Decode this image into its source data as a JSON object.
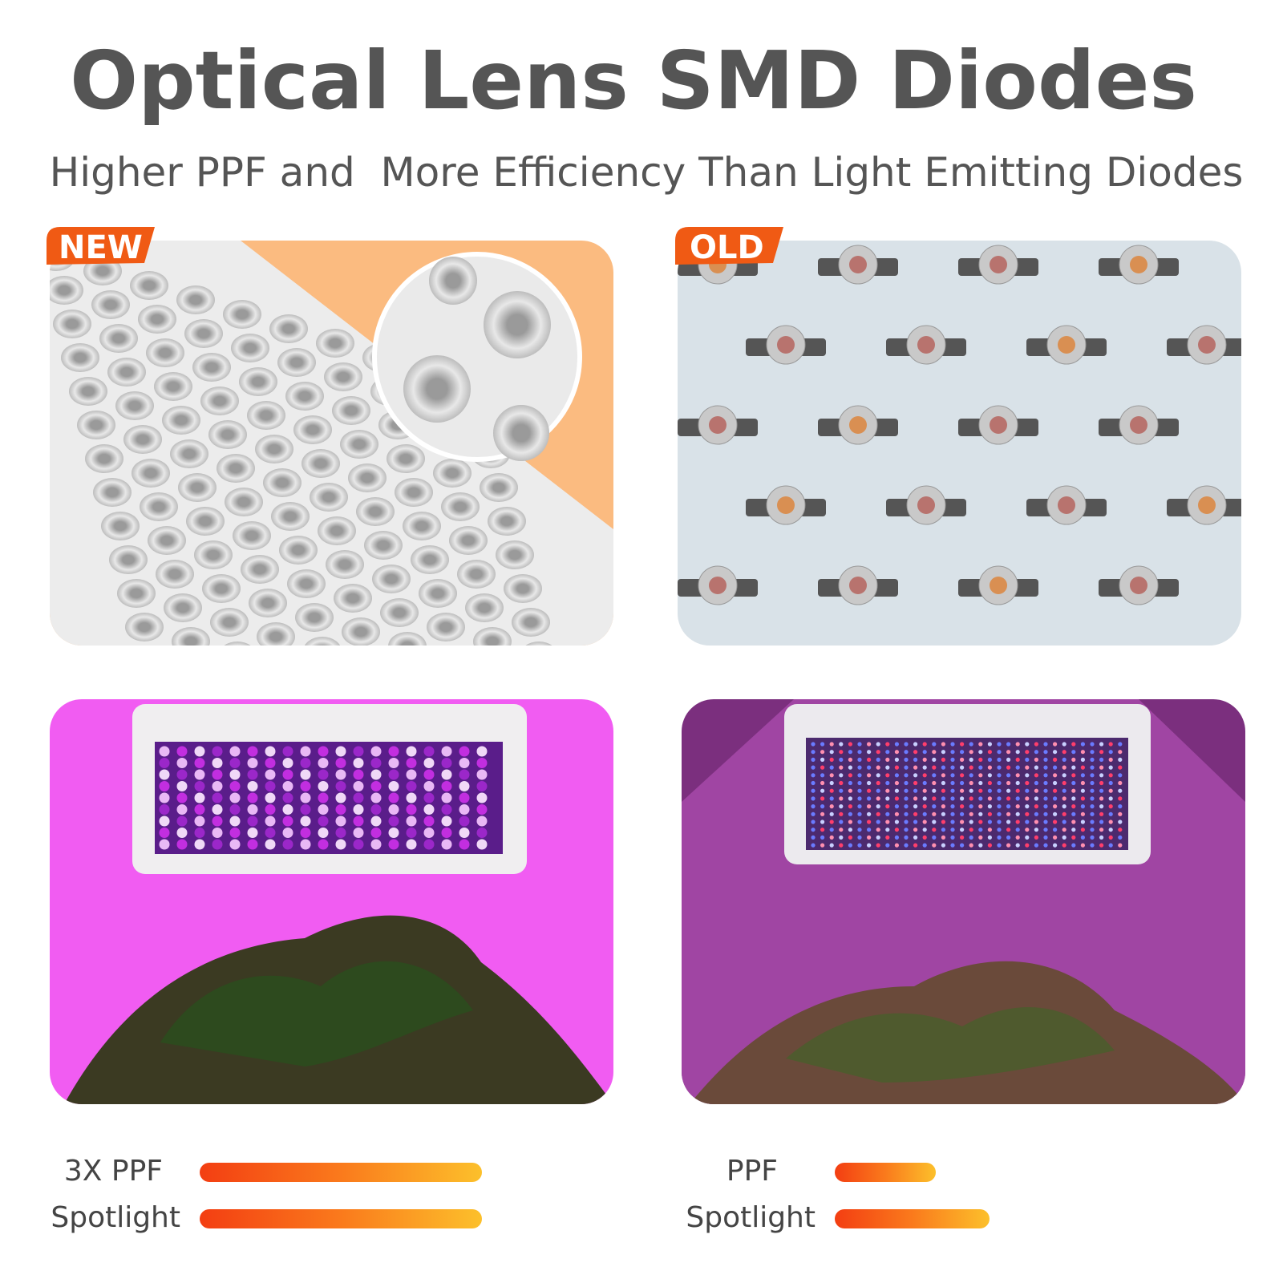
{
  "header": {
    "title": "Optical Lens SMD Diodes",
    "subtitle": "Higher PPF and  More Efficiency Than Light Emitting Diodes"
  },
  "panels": {
    "new": {
      "badge": "NEW"
    },
    "old": {
      "badge": "OLD"
    }
  },
  "comparison": {
    "new": {
      "labels": [
        "3X PPF",
        "Spotlight"
      ]
    },
    "old": {
      "labels": [
        "PPF",
        "Spotlight"
      ]
    }
  }
}
